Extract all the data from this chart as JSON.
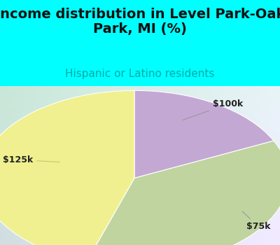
{
  "title": "Income distribution in Level Park-Oak\nPark, MI (%)",
  "subtitle": "Hispanic or Latino residents",
  "title_color": "#111111",
  "subtitle_color": "#00aaaa",
  "background_color": "#00ffff",
  "chart_bg_left": "#c8e8d8",
  "chart_bg_right": "#e8f4f8",
  "slices": [
    {
      "label": "$100k",
      "value": 18,
      "color": "#c4a8d4"
    },
    {
      "label": "$75k",
      "value": 37,
      "color": "#c0d4a0"
    },
    {
      "label": "$125k",
      "value": 45,
      "color": "#f0f090"
    }
  ],
  "startangle": 90,
  "label_fontsize": 9,
  "title_fontsize": 14,
  "subtitle_fontsize": 11
}
